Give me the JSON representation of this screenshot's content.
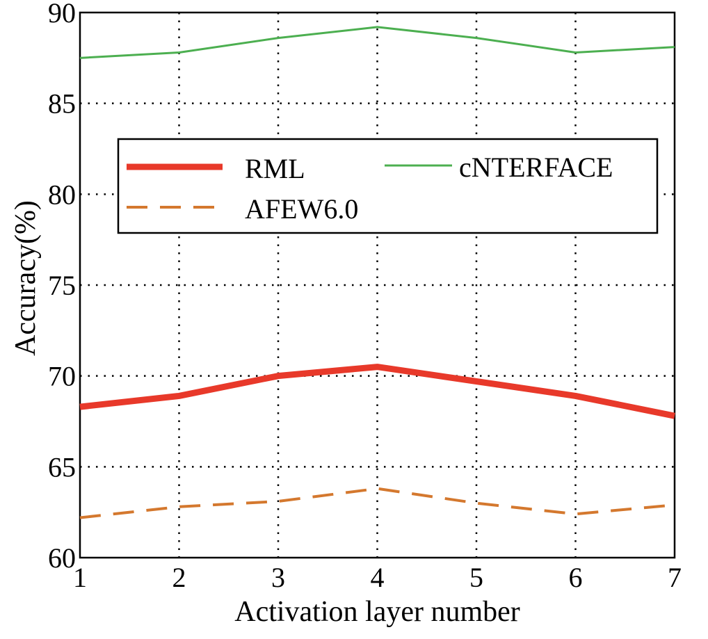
{
  "chart_data": {
    "type": "line",
    "title": "",
    "xlabel": "Activation layer number",
    "ylabel": "Accuracy(%)",
    "x": [
      1,
      2,
      3,
      4,
      5,
      6,
      7
    ],
    "xlim": [
      1,
      7
    ],
    "ylim": [
      60,
      90
    ],
    "xticks": [
      "1",
      "2",
      "3",
      "4",
      "5",
      "6",
      "7"
    ],
    "yticks": [
      "60",
      "65",
      "70",
      "75",
      "80",
      "85",
      "90"
    ],
    "grid": true,
    "legend_position": "upper-middle",
    "series": [
      {
        "name": "RML",
        "color": "#e8392a",
        "style": "solid-thick",
        "values": [
          68.3,
          68.9,
          70.0,
          70.5,
          69.7,
          68.9,
          67.8
        ]
      },
      {
        "name": "cNTERFACE",
        "color": "#4caf50",
        "style": "solid-thin",
        "values": [
          87.5,
          87.8,
          88.6,
          89.2,
          88.6,
          87.8,
          88.1
        ]
      },
      {
        "name": "AFEW6.0",
        "color": "#d4782e",
        "style": "dashed",
        "values": [
          62.2,
          62.8,
          63.1,
          63.8,
          63.0,
          62.4,
          62.9
        ]
      }
    ]
  }
}
